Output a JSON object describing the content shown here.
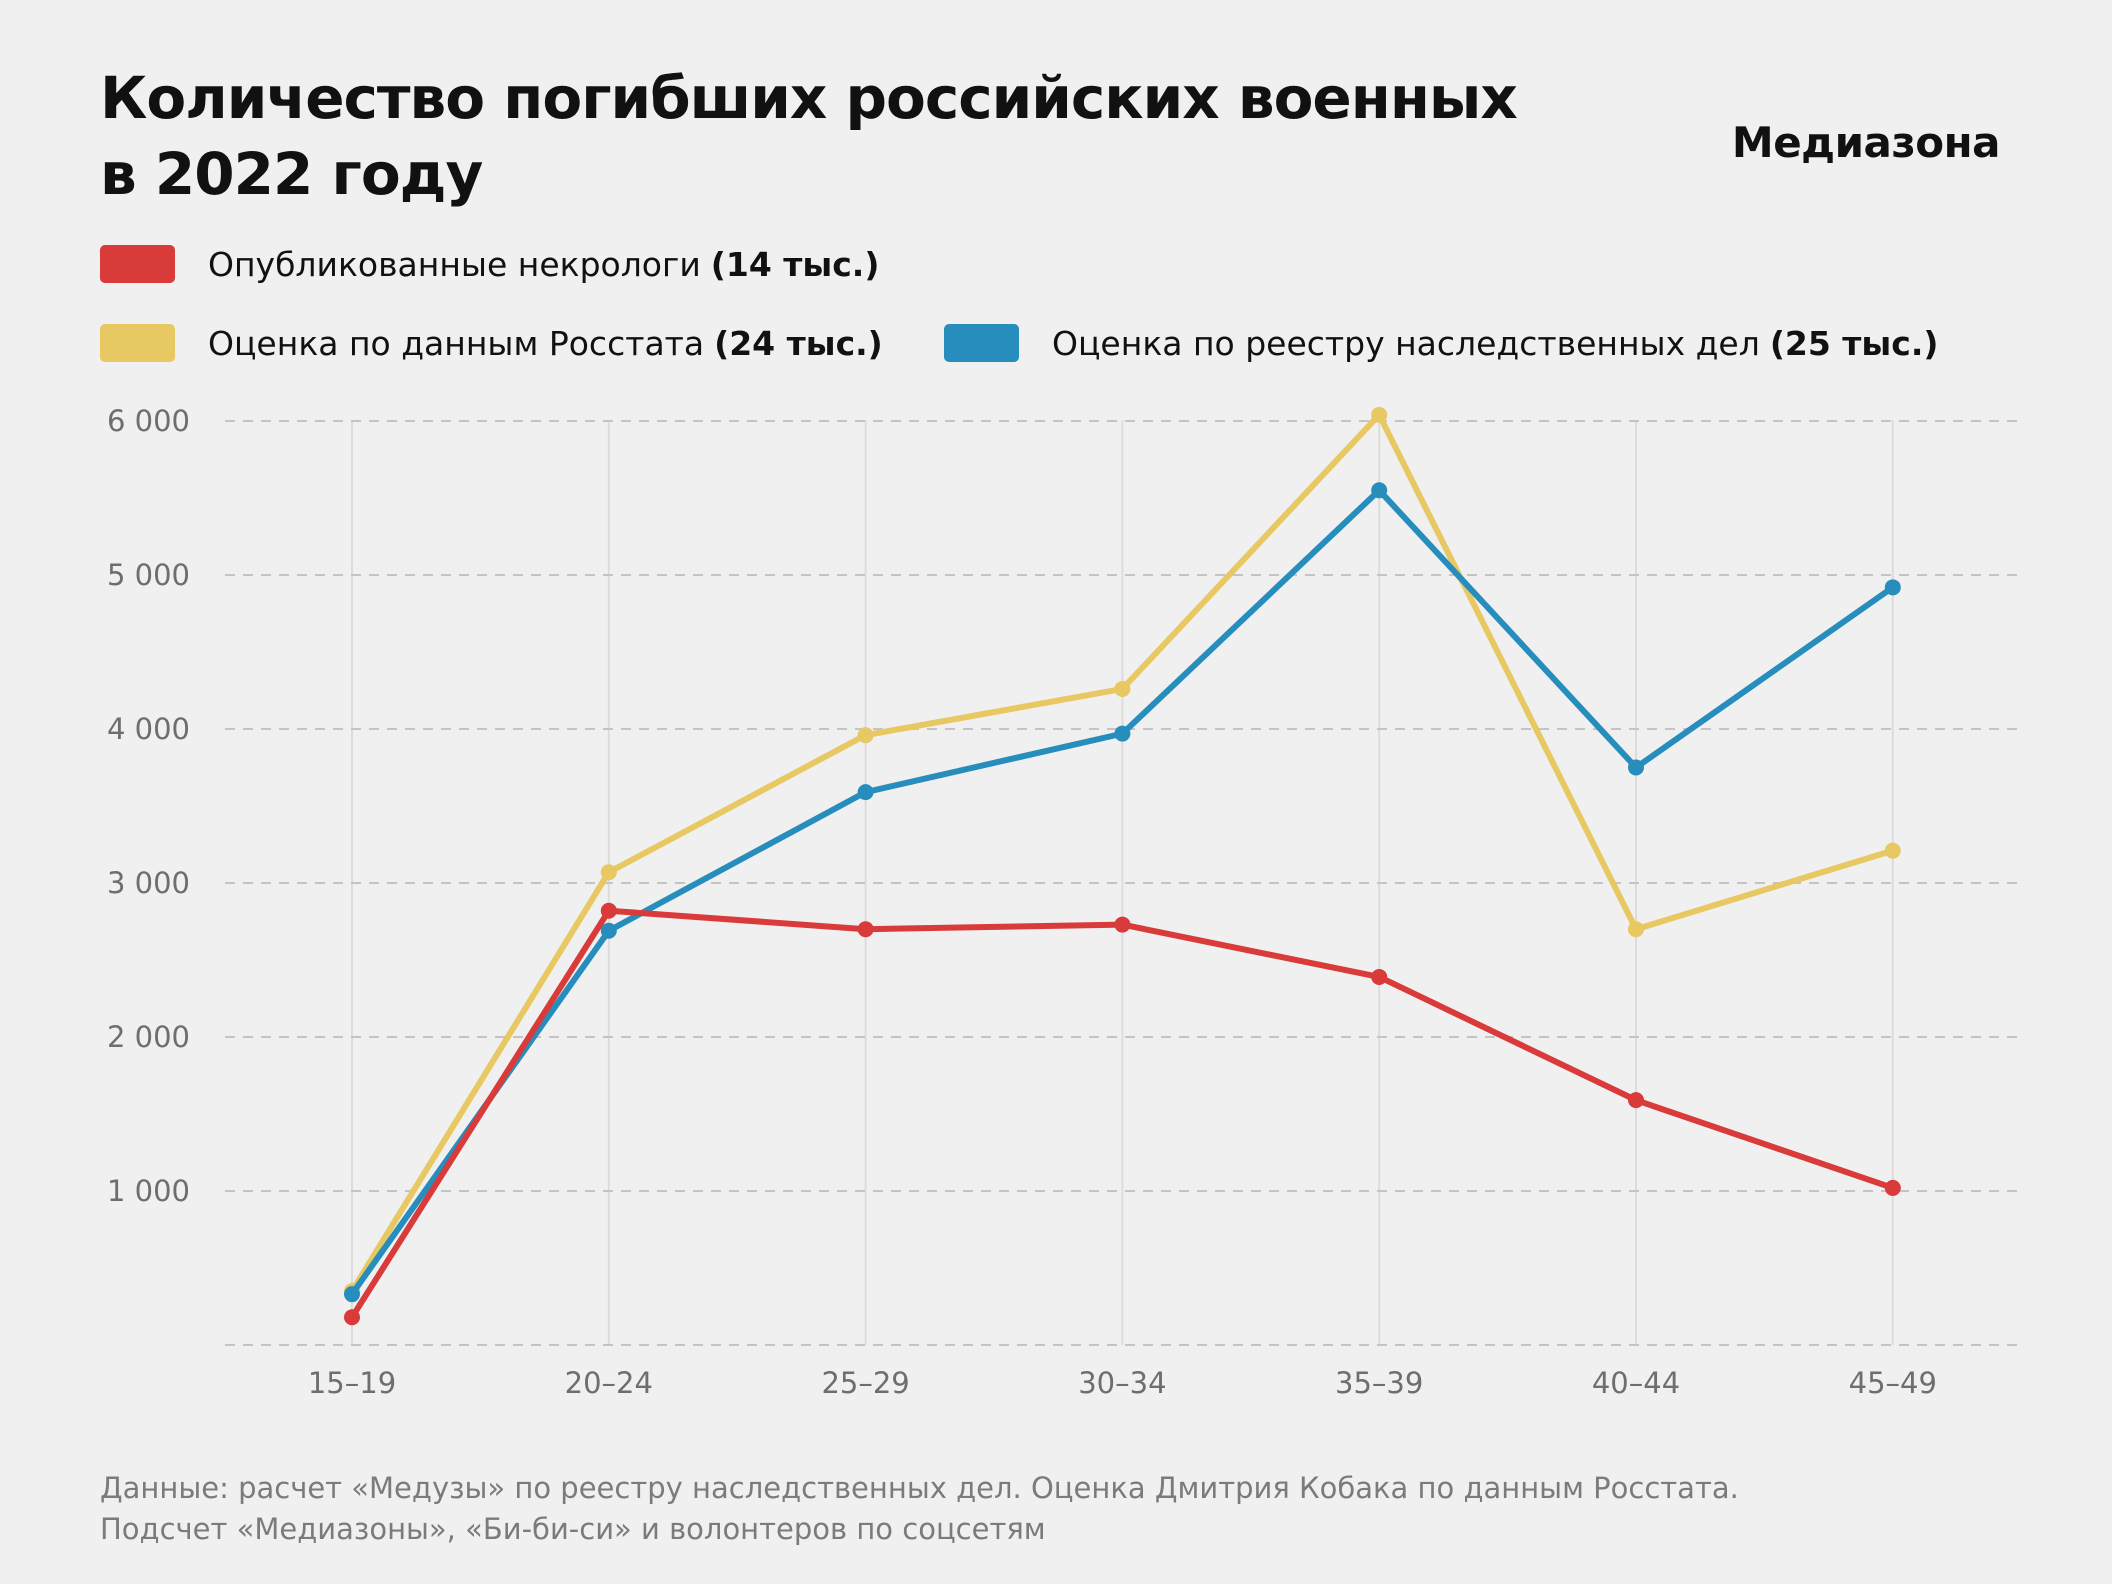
{
  "header": {
    "title_line1": "Количество погибших российских военных",
    "title_line2": "в 2022 году",
    "brand": "Медиазона"
  },
  "legend": [
    {
      "label": "Опубликованные некрологи",
      "value": "(14 тыс.)",
      "color": "#d93a3a"
    },
    {
      "label": "Оценка по данным Росстата",
      "value": "(24 тыс.)",
      "color": "#e8c862"
    },
    {
      "label": "Оценка по реестру наследственных дел",
      "value": "(25 тыс.)",
      "color": "#268dbd"
    }
  ],
  "footnote": {
    "line1": "Данные: расчет «Медузы» по реестру наследственных дел. Оценка Дмитрия Кобака по данным Росстата.",
    "line2": "Подсчет «Медиазоны», «Би-би-си» и волонтеров по соцсетям"
  },
  "chart_data": {
    "type": "line",
    "title": "Количество погибших российских военных в 2022 году",
    "xlabel": "",
    "ylabel": "",
    "categories": [
      "15–19",
      "20–24",
      "25–29",
      "30–34",
      "35–39",
      "40–44",
      "45–49"
    ],
    "yticks": [
      1000,
      2000,
      3000,
      4000,
      5000,
      6000
    ],
    "ytick_labels": [
      "1 000",
      "2 000",
      "3 000",
      "4 000",
      "5 000",
      "6 000"
    ],
    "ylim": [
      0,
      6000
    ],
    "grid": true,
    "series": [
      {
        "name": "Оценка по данным Росстата",
        "color": "#e8c862",
        "values": [
          350,
          3070,
          3960,
          4260,
          6040,
          2700,
          3210
        ]
      },
      {
        "name": "Оценка по реестру наследственных дел",
        "color": "#268dbd",
        "values": [
          330,
          2690,
          3590,
          3970,
          5550,
          3750,
          4920
        ]
      },
      {
        "name": "Опубликованные некрологи",
        "color": "#d93a3a",
        "values": [
          180,
          2820,
          2700,
          2730,
          2390,
          1590,
          1020
        ]
      }
    ]
  }
}
